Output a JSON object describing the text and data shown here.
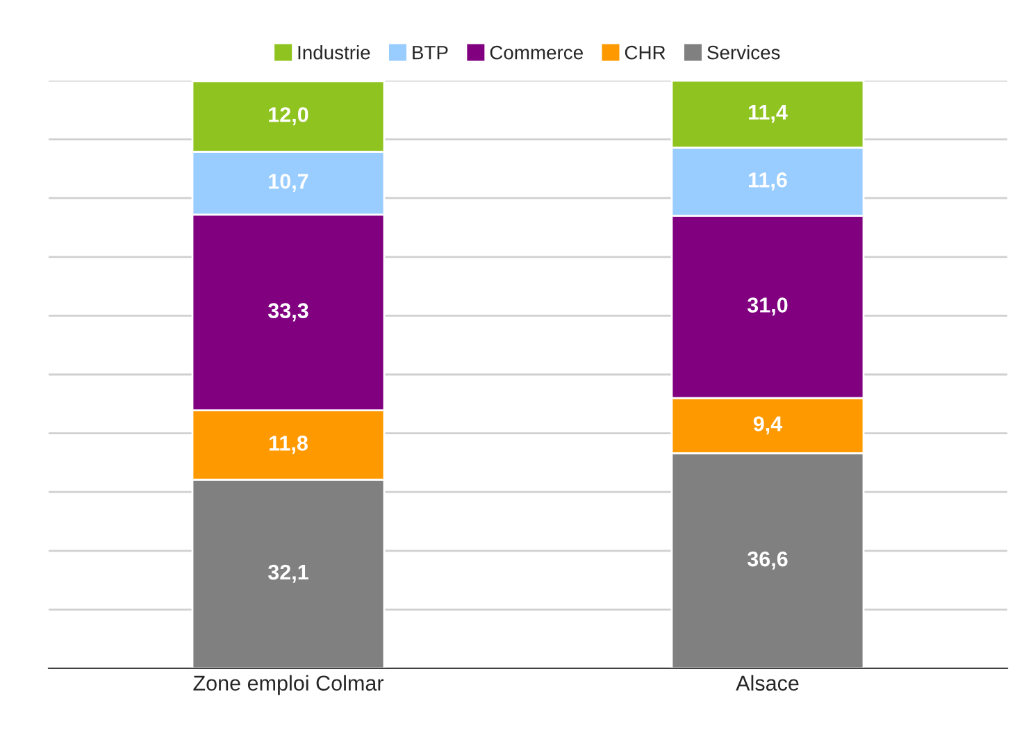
{
  "chart_data": {
    "type": "bar",
    "stacked": true,
    "categories": [
      "Zone emploi Colmar",
      "Alsace"
    ],
    "series": [
      {
        "name": "Services",
        "color": "#808080",
        "values": [
          32.1,
          36.6
        ],
        "value_labels": [
          "32,1",
          "36,6"
        ]
      },
      {
        "name": "CHR",
        "color": "#ff9900",
        "values": [
          11.8,
          9.4
        ],
        "value_labels": [
          "11,8",
          "9,4"
        ]
      },
      {
        "name": "Commerce",
        "color": "#800080",
        "values": [
          33.3,
          31.0
        ],
        "value_labels": [
          "33,3",
          "31,0"
        ]
      },
      {
        "name": "BTP",
        "color": "#99ccff",
        "values": [
          10.7,
          11.6
        ],
        "value_labels": [
          "10,7",
          "11,6"
        ]
      },
      {
        "name": "Industrie",
        "color": "#8fc31f",
        "values": [
          12.0,
          11.4
        ],
        "value_labels": [
          "12,0",
          "11,4"
        ]
      }
    ],
    "ylim": [
      0,
      100
    ],
    "yticks": [
      {
        "value": 0,
        "label": null
      },
      {
        "value": 10,
        "label": null
      },
      {
        "value": 20,
        "label": null
      },
      {
        "value": 30,
        "label": null
      },
      {
        "value": 40,
        "label": null
      },
      {
        "value": 50,
        "label": null
      },
      {
        "value": 60,
        "label": null
      },
      {
        "value": 70,
        "label": null
      },
      {
        "value": 80,
        "label": null
      },
      {
        "value": 90,
        "label": null
      },
      {
        "value": 100,
        "label": null
      }
    ],
    "grid": "y",
    "legend": "top",
    "tick_labels": "x"
  }
}
